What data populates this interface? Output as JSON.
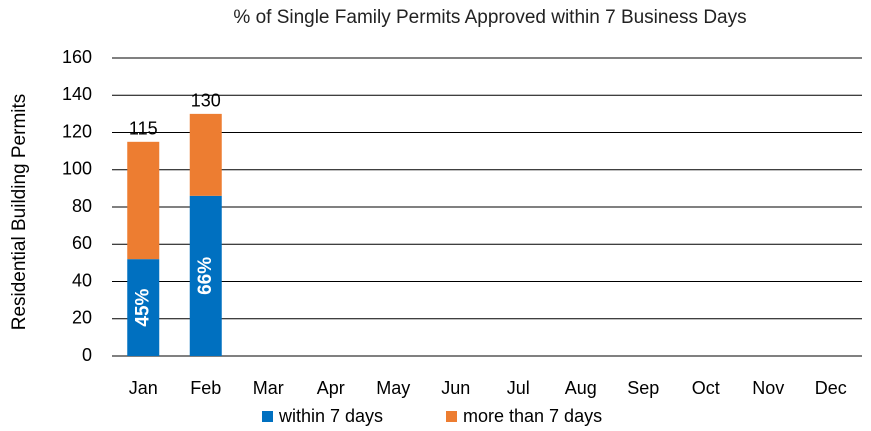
{
  "chart_data": {
    "type": "stacked_bar",
    "title": "% of Single Family Permits Approved within 7 Business Days",
    "y_label": "Residential Building Permits",
    "categories": [
      "Jan",
      "Feb",
      "Mar",
      "Apr",
      "May",
      "Jun",
      "Jul",
      "Aug",
      "Sep",
      "Oct",
      "Nov",
      "Dec"
    ],
    "series": [
      {
        "name": "within 7 days",
        "color": "#0070c0",
        "values": [
          52,
          86,
          null,
          null,
          null,
          null,
          null,
          null,
          null,
          null,
          null,
          null
        ],
        "percent_labels": [
          "45%",
          "66%",
          null,
          null,
          null,
          null,
          null,
          null,
          null,
          null,
          null,
          null
        ]
      },
      {
        "name": "more than 7 days",
        "color": "#ed7d31",
        "values": [
          63,
          44,
          null,
          null,
          null,
          null,
          null,
          null,
          null,
          null,
          null,
          null
        ]
      }
    ],
    "totals": [
      115,
      130,
      null,
      null,
      null,
      null,
      null,
      null,
      null,
      null,
      null,
      null
    ],
    "ylim": [
      0,
      160
    ],
    "yticks": [
      0,
      20,
      40,
      60,
      80,
      100,
      120,
      140,
      160
    ],
    "grid": true,
    "legend": "bottom"
  }
}
